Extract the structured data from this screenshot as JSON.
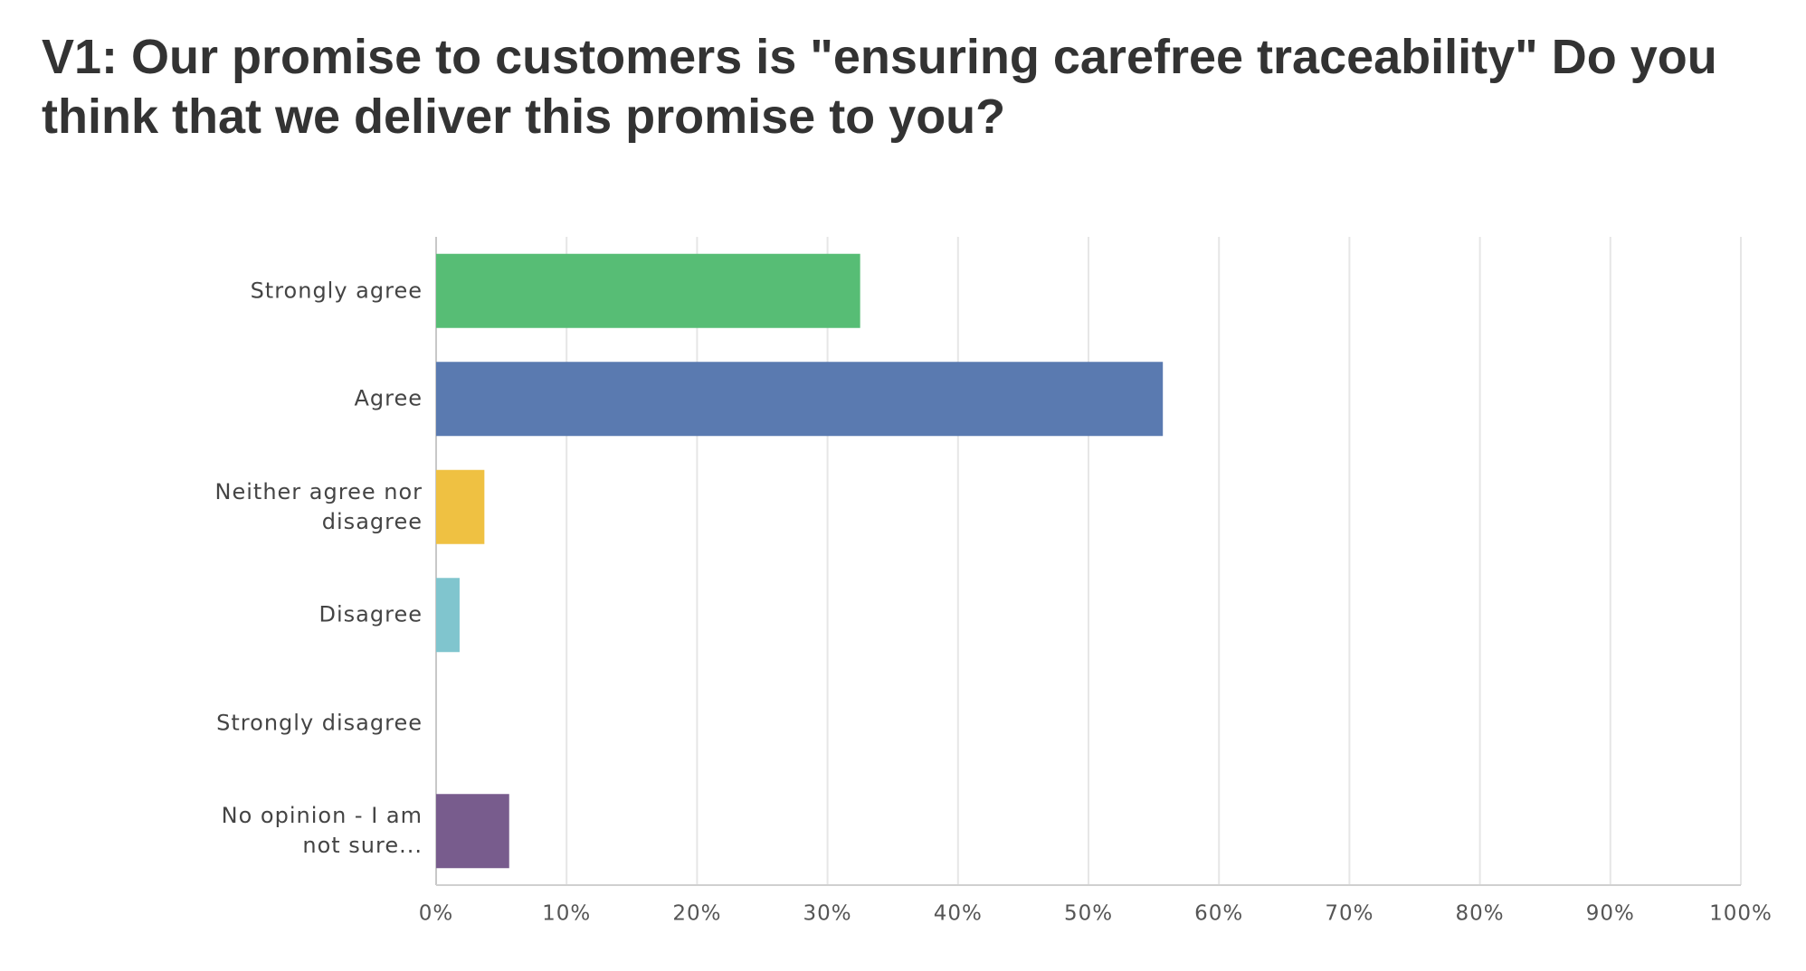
{
  "chart_data": {
    "type": "bar",
    "orientation": "horizontal",
    "title": "V1: Our promise to customers is \"ensuring carefree traceability\" Do you think that we deliver this promise to you?",
    "categories": [
      "Strongly agree",
      "Agree",
      "Neither agree nor disagree",
      "Disagree",
      "Strongly disagree",
      "No opinion - I am not sure..."
    ],
    "values": [
      32.5,
      55.7,
      3.7,
      1.8,
      0,
      5.6
    ],
    "colors": [
      "#57bd75",
      "#5a7ab0",
      "#efc142",
      "#80c5ce",
      null,
      "#785c8d"
    ],
    "xlim": [
      0,
      100
    ],
    "xticks": [
      {
        "value": 0,
        "label": "0%"
      },
      {
        "value": 10,
        "label": "10%"
      },
      {
        "value": 20,
        "label": "20%"
      },
      {
        "value": 30,
        "label": "30%"
      },
      {
        "value": 40,
        "label": "40%"
      },
      {
        "value": 50,
        "label": "50%"
      },
      {
        "value": 60,
        "label": "60%"
      },
      {
        "value": 70,
        "label": "70%"
      },
      {
        "value": 80,
        "label": "80%"
      },
      {
        "value": 90,
        "label": "90%"
      },
      {
        "value": 100,
        "label": "100%"
      }
    ],
    "grid": true
  }
}
